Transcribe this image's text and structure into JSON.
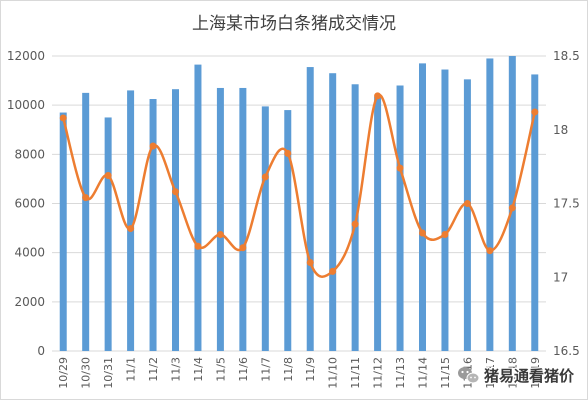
{
  "chart_data": {
    "type": "bar",
    "title": "上海某市场白条猪成交情况",
    "xlabel": "",
    "ylabel": "",
    "categories": [
      "10/29",
      "10/30",
      "10/31",
      "11/1",
      "11/2",
      "11/3",
      "11/4",
      "11/5",
      "11/6",
      "11/7",
      "11/8",
      "11/9",
      "11/10",
      "11/11",
      "11/12",
      "11/13",
      "11/14",
      "11/15",
      "11/16",
      "11/17",
      "11/18",
      "11/19"
    ],
    "series": [
      {
        "type": "bar",
        "axis": "left",
        "color": "#5B9BD5",
        "values": [
          9700,
          10500,
          9500,
          10600,
          10250,
          10650,
          11650,
          10700,
          10700,
          9950,
          9800,
          11550,
          11300,
          10850,
          10350,
          10800,
          11700,
          11450,
          11050,
          11900,
          12000,
          11250
        ]
      },
      {
        "type": "line",
        "axis": "right",
        "color": "#ED7D31",
        "smooth": true,
        "markers": true,
        "values": [
          18.08,
          17.54,
          17.69,
          17.33,
          17.89,
          17.58,
          17.21,
          17.29,
          17.2,
          17.68,
          17.84,
          17.1,
          17.04,
          17.36,
          18.23,
          17.74,
          17.3,
          17.29,
          17.5,
          17.18,
          17.47,
          18.12
        ]
      }
    ],
    "y_left": {
      "range": [
        0,
        12000
      ],
      "ticks": [
        0,
        2000,
        4000,
        6000,
        8000,
        10000,
        12000
      ]
    },
    "y_right": {
      "range": [
        16.5,
        18.5
      ],
      "ticks": [
        16.5,
        17,
        17.5,
        18,
        18.5
      ]
    },
    "grid": true,
    "legend": "none"
  },
  "watermark": {
    "text": "猪易通看猪价",
    "icon": "wechat-icon"
  },
  "colors": {
    "grid": "#D9D9D9",
    "border": "#D9D9D9",
    "axis_text": "#595959"
  }
}
